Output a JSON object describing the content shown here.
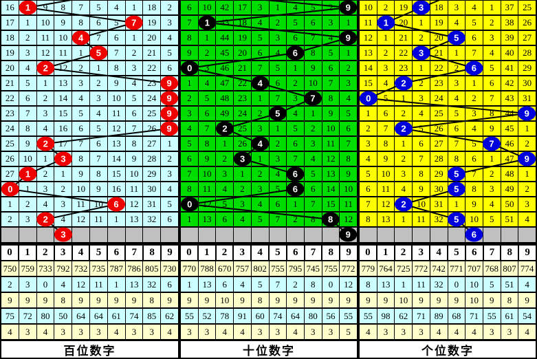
{
  "chart_data": {
    "type": "table",
    "description_labels": {
      "column_digits": [
        "0",
        "1",
        "2",
        "3",
        "4",
        "5",
        "6",
        "7",
        "8",
        "9"
      ]
    },
    "panels": [
      {
        "id": "hundreds",
        "title": "百位数字",
        "colors": {
          "cell": "#ccffff",
          "ball": "#ee0000",
          "gray": "#c0c0c0"
        },
        "header": [
          "0",
          "1",
          "2",
          "3",
          "4",
          "5",
          "6",
          "7",
          "8",
          "9"
        ],
        "rows": [
          [
            "16",
            "",
            "9",
            "8",
            "7",
            "5",
            "4",
            "1",
            "18",
            "2"
          ],
          [
            "17",
            "1",
            "10",
            "9",
            "8",
            "6",
            "5",
            "",
            "19",
            "3"
          ],
          [
            "18",
            "2",
            "11",
            "10",
            "",
            "7",
            "6",
            "1",
            "20",
            "4"
          ],
          [
            "19",
            "3",
            "12",
            "11",
            "1",
            "",
            "7",
            "2",
            "21",
            "5"
          ],
          [
            "20",
            "4",
            "",
            "12",
            "2",
            "1",
            "8",
            "3",
            "22",
            "6"
          ],
          [
            "21",
            "5",
            "1",
            "13",
            "3",
            "2",
            "9",
            "4",
            "23",
            ""
          ],
          [
            "22",
            "6",
            "2",
            "14",
            "4",
            "3",
            "10",
            "5",
            "24",
            ""
          ],
          [
            "23",
            "7",
            "3",
            "15",
            "5",
            "4",
            "11",
            "6",
            "25",
            ""
          ],
          [
            "24",
            "8",
            "4",
            "16",
            "6",
            "5",
            "12",
            "7",
            "26",
            ""
          ],
          [
            "25",
            "9",
            "",
            "17",
            "7",
            "6",
            "13",
            "8",
            "27",
            "1"
          ],
          [
            "26",
            "10",
            "1",
            "",
            "8",
            "7",
            "14",
            "9",
            "28",
            "2"
          ],
          [
            "27",
            "",
            "2",
            "1",
            "9",
            "8",
            "15",
            "10",
            "29",
            "3"
          ],
          [
            "",
            "1",
            "3",
            "2",
            "10",
            "9",
            "16",
            "11",
            "30",
            "4"
          ],
          [
            "1",
            "2",
            "4",
            "3",
            "11",
            "10",
            "",
            "12",
            "31",
            "5"
          ],
          [
            "2",
            "3",
            "",
            "4",
            "12",
            "11",
            "1",
            "13",
            "32",
            "6"
          ]
        ],
        "drawn_digits": [
          1,
          7,
          4,
          5,
          2,
          9,
          9,
          9,
          9,
          2,
          3,
          1,
          0,
          6,
          2
        ],
        "next_digit": 3,
        "incoming_col": 6.2,
        "stats": [
          [
            "750",
            "759",
            "733",
            "792",
            "732",
            "735",
            "787",
            "786",
            "805",
            "730"
          ],
          [
            "2",
            "3",
            "0",
            "4",
            "12",
            "11",
            "1",
            "13",
            "32",
            "6"
          ],
          [
            "9",
            "9",
            "9",
            "8",
            "9",
            "9",
            "9",
            "9",
            "8",
            "9"
          ],
          [
            "75",
            "72",
            "80",
            "50",
            "64",
            "64",
            "61",
            "74",
            "85",
            "62"
          ],
          [
            "4",
            "3",
            "4",
            "3",
            "3",
            "3",
            "4",
            "3",
            "3",
            "4"
          ]
        ]
      },
      {
        "id": "tens",
        "title": "十位数字",
        "colors": {
          "cell": "#00dd00",
          "ball": "#000000",
          "gray": "#c0c0c0"
        },
        "header": [
          "0",
          "1",
          "2",
          "3",
          "4",
          "5",
          "6",
          "7",
          "8",
          "9"
        ],
        "rows": [
          [
            "6",
            "10",
            "42",
            "17",
            "3",
            "1",
            "4",
            "5",
            "2",
            ""
          ],
          [
            "7",
            "",
            "43",
            "18",
            "4",
            "2",
            "5",
            "6",
            "3",
            "1"
          ],
          [
            "8",
            "1",
            "44",
            "19",
            "5",
            "3",
            "6",
            "7",
            "4",
            ""
          ],
          [
            "9",
            "2",
            "45",
            "20",
            "6",
            "4",
            "",
            "8",
            "5",
            "1"
          ],
          [
            "",
            "3",
            "46",
            "21",
            "7",
            "5",
            "1",
            "9",
            "6",
            "2"
          ],
          [
            "1",
            "4",
            "47",
            "22",
            "",
            "6",
            "2",
            "10",
            "7",
            "3"
          ],
          [
            "2",
            "5",
            "48",
            "23",
            "1",
            "7",
            "3",
            "",
            "8",
            "4"
          ],
          [
            "3",
            "6",
            "49",
            "24",
            "2",
            "",
            "4",
            "1",
            "9",
            "5"
          ],
          [
            "4",
            "7",
            "",
            "25",
            "3",
            "1",
            "5",
            "2",
            "10",
            "6"
          ],
          [
            "5",
            "8",
            "1",
            "26",
            "",
            "2",
            "6",
            "3",
            "11",
            "7"
          ],
          [
            "6",
            "9",
            "2",
            "",
            "1",
            "3",
            "7",
            "4",
            "12",
            "8"
          ],
          [
            "7",
            "10",
            "3",
            "1",
            "2",
            "4",
            "",
            "5",
            "13",
            "9"
          ],
          [
            "8",
            "11",
            "4",
            "2",
            "3",
            "5",
            "",
            "6",
            "14",
            "10"
          ],
          [
            "",
            "12",
            "5",
            "3",
            "4",
            "6",
            "1",
            "7",
            "15",
            "11"
          ],
          [
            "1",
            "13",
            "6",
            "4",
            "5",
            "7",
            "2",
            "8",
            "",
            "12"
          ]
        ],
        "drawn_digits": [
          9,
          1,
          9,
          6,
          0,
          4,
          7,
          5,
          2,
          4,
          3,
          6,
          6,
          0,
          8
        ],
        "next_digit": 9,
        "incoming_col": 0.5,
        "stats": [
          [
            "770",
            "788",
            "670",
            "757",
            "802",
            "755",
            "795",
            "745",
            "755",
            "772"
          ],
          [
            "1",
            "13",
            "6",
            "4",
            "5",
            "7",
            "2",
            "8",
            "0",
            "12"
          ],
          [
            "9",
            "9",
            "10",
            "9",
            "8",
            "9",
            "9",
            "9",
            "9",
            "9"
          ],
          [
            "55",
            "52",
            "78",
            "91",
            "60",
            "74",
            "64",
            "80",
            "56",
            "55"
          ],
          [
            "3",
            "3",
            "4",
            "4",
            "3",
            "3",
            "4",
            "3",
            "3",
            "5"
          ]
        ]
      },
      {
        "id": "units",
        "title": "个位数字",
        "colors": {
          "cell": "#ffff00",
          "ball": "#0000dd",
          "gray": "#c0c0c0"
        },
        "header": [
          "0",
          "1",
          "2",
          "3",
          "4",
          "5",
          "6",
          "7",
          "8",
          "9"
        ],
        "rows": [
          [
            "10",
            "2",
            "19",
            "",
            "18",
            "3",
            "4",
            "1",
            "37",
            "25"
          ],
          [
            "11",
            "",
            "20",
            "1",
            "19",
            "4",
            "5",
            "2",
            "38",
            "26"
          ],
          [
            "12",
            "1",
            "21",
            "2",
            "20",
            "",
            "6",
            "3",
            "39",
            "27"
          ],
          [
            "13",
            "2",
            "22",
            "",
            "21",
            "1",
            "7",
            "4",
            "40",
            "28"
          ],
          [
            "14",
            "3",
            "23",
            "1",
            "22",
            "2",
            "",
            "5",
            "41",
            "29"
          ],
          [
            "15",
            "4",
            "",
            "2",
            "23",
            "3",
            "1",
            "6",
            "42",
            "30"
          ],
          [
            "",
            "5",
            "1",
            "3",
            "24",
            "4",
            "2",
            "7",
            "43",
            "31"
          ],
          [
            "1",
            "6",
            "2",
            "4",
            "25",
            "5",
            "3",
            "8",
            "44",
            ""
          ],
          [
            "2",
            "7",
            "",
            "5",
            "26",
            "6",
            "4",
            "9",
            "45",
            "1"
          ],
          [
            "3",
            "8",
            "1",
            "6",
            "27",
            "7",
            "5",
            "",
            "46",
            "2"
          ],
          [
            "4",
            "9",
            "2",
            "7",
            "28",
            "8",
            "6",
            "1",
            "47",
            ""
          ],
          [
            "5",
            "10",
            "3",
            "8",
            "29",
            "",
            "7",
            "2",
            "48",
            "1"
          ],
          [
            "6",
            "11",
            "4",
            "9",
            "30",
            "",
            "8",
            "3",
            "49",
            "2"
          ],
          [
            "7",
            "12",
            "",
            "10",
            "31",
            "1",
            "9",
            "4",
            "50",
            "3"
          ],
          [
            "8",
            "13",
            "1",
            "11",
            "32",
            "",
            "10",
            "5",
            "51",
            "4"
          ]
        ],
        "drawn_digits": [
          3,
          1,
          5,
          3,
          6,
          2,
          0,
          9,
          2,
          7,
          9,
          5,
          5,
          2,
          5
        ],
        "next_digit": 6,
        "incoming_col": 5.5,
        "stats": [
          [
            "779",
            "764",
            "725",
            "772",
            "742",
            "771",
            "707",
            "768",
            "807",
            "774"
          ],
          [
            "8",
            "13",
            "1",
            "11",
            "32",
            "0",
            "10",
            "5",
            "51",
            "4"
          ],
          [
            "9",
            "9",
            "10",
            "9",
            "9",
            "9",
            "10",
            "9",
            "8",
            "9"
          ],
          [
            "55",
            "98",
            "62",
            "71",
            "89",
            "68",
            "71",
            "55",
            "61",
            "54"
          ],
          [
            "4",
            "3",
            "3",
            "3",
            "4",
            "4",
            "4",
            "3",
            "3",
            "4"
          ]
        ]
      }
    ]
  }
}
